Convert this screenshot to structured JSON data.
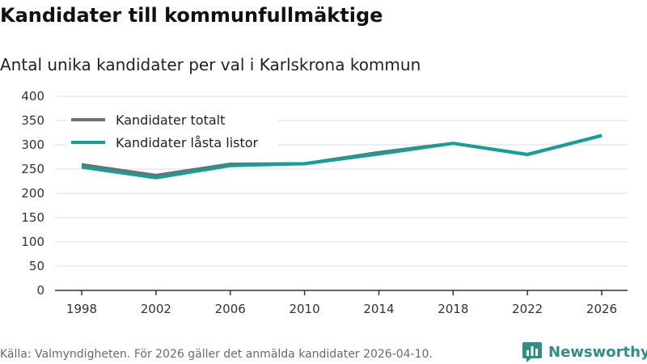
{
  "title": "Kandidater till kommunfullmäktige",
  "subtitle": "Antal unika kandidater per val i Karlskrona kommun",
  "source": "Källa: Valmyndigheten. För 2026 gäller det anmälda kandidater 2026-04-10.",
  "brand": {
    "name": "Newsworthy",
    "color": "#2e8f86",
    "icon": "bar-chart-logo-icon"
  },
  "chart_data": {
    "type": "line",
    "title": "Kandidater till kommunfullmäktige",
    "subtitle": "Antal unika kandidater per val i Karlskrona kommun",
    "xlabel": "",
    "ylabel": "",
    "x": [
      1998,
      2002,
      2006,
      2010,
      2014,
      2018,
      2022,
      2026
    ],
    "ylim": [
      0,
      400
    ],
    "yticks": [
      0,
      50,
      100,
      150,
      200,
      250,
      300,
      350,
      400
    ],
    "grid": true,
    "legend_position": "top-left",
    "series": [
      {
        "name": "Kandidater totalt",
        "color": "#6e6e73",
        "values": [
          259,
          237,
          260,
          261,
          284,
          303,
          280,
          319
        ]
      },
      {
        "name": "Kandidater låsta listor",
        "color": "#14a096",
        "values": [
          254,
          232,
          257,
          261,
          281,
          303,
          280,
          319
        ]
      }
    ]
  }
}
